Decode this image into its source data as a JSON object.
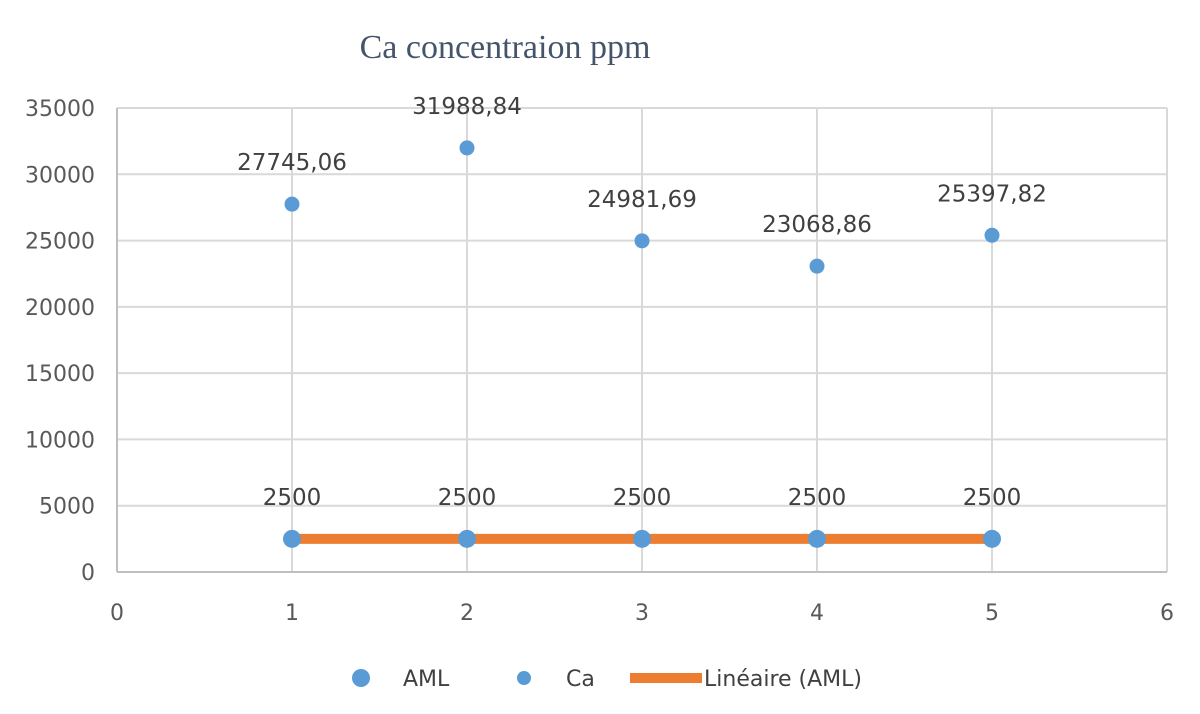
{
  "chart_data": {
    "type": "scatter",
    "title": "Ca concentraion ppm",
    "xlabel": "",
    "ylabel": "",
    "xlim": [
      0,
      6
    ],
    "ylim": [
      0,
      35000
    ],
    "x_ticks": [
      0,
      1,
      2,
      3,
      4,
      5,
      6
    ],
    "y_ticks": [
      0,
      5000,
      10000,
      15000,
      20000,
      25000,
      30000,
      35000
    ],
    "grid": true,
    "legend_position": "bottom",
    "series": [
      {
        "name": "AML",
        "kind": "scatter",
        "color": "#5b9bd5",
        "x": [
          1,
          2,
          3,
          4,
          5
        ],
        "y": [
          2500,
          2500,
          2500,
          2500,
          2500
        ],
        "labels": [
          "2500",
          "2500",
          "2500",
          "2500",
          "2500"
        ]
      },
      {
        "name": "Ca",
        "kind": "scatter",
        "color": "#5b9bd5",
        "x": [
          1,
          2,
          3,
          4,
          5
        ],
        "y": [
          27745.06,
          31988.84,
          24981.69,
          23068.86,
          25397.82
        ],
        "labels": [
          "27745,06",
          "31988,84",
          "24981,69",
          "23068,86",
          "25397,82"
        ]
      },
      {
        "name": "Linéaire (AML)",
        "kind": "trendline",
        "color": "#ed7d31",
        "x": [
          1,
          5
        ],
        "y": [
          2500,
          2500
        ]
      }
    ]
  }
}
